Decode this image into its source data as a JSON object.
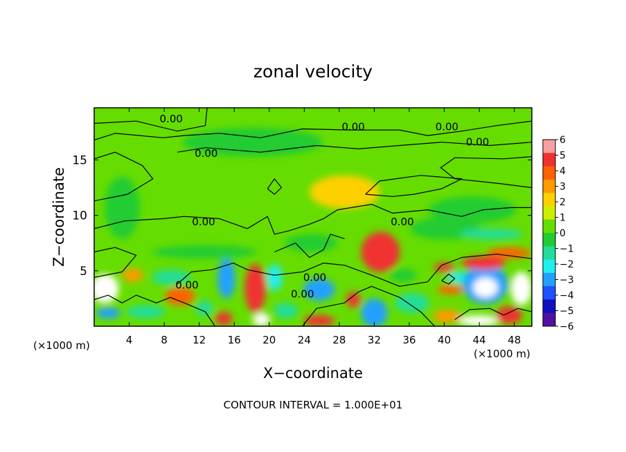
{
  "chart_data": {
    "type": "heatmap",
    "title": "zonal velocity",
    "xlabel": "X−coordinate",
    "ylabel": "Z−coordinate",
    "x_unit_left": "(×1000 m)",
    "x_unit_right": "(×1000 m)",
    "footer": "CONTOUR INTERVAL = 1.000E+01",
    "xlim": [
      0,
      50
    ],
    "ylim": [
      0,
      19.7
    ],
    "x_ticks": [
      4,
      8,
      12,
      16,
      20,
      24,
      28,
      32,
      36,
      40,
      44,
      48
    ],
    "y_ticks": [
      5,
      10,
      15
    ],
    "colorbar": {
      "ticks": [
        6,
        5,
        4,
        3,
        2,
        1,
        0,
        -1,
        -2,
        -3,
        -4,
        -5,
        -6
      ],
      "labels": [
        "6",
        "5",
        "4",
        "3",
        "2",
        "1",
        "0",
        "−1",
        "−2",
        "−3",
        "−4",
        "−5",
        "−6"
      ],
      "colors": [
        "#f8a0a0",
        "#f03030",
        "#ff6000",
        "#ff9900",
        "#ffd000",
        "#ccee00",
        "#66dd00",
        "#22cc33",
        "#22dd99",
        "#22eeee",
        "#22a0ff",
        "#2050ff",
        "#1010c0",
        "#5010a0"
      ]
    },
    "background_color": "#66dd00",
    "contour_label": "0.00",
    "contour_labels": [
      {
        "x": 8.8,
        "y": 18.7
      },
      {
        "x": 29.6,
        "y": 18.0
      },
      {
        "x": 40.3,
        "y": 18.0
      },
      {
        "x": 43.8,
        "y": 16.6
      },
      {
        "x": 12.8,
        "y": 15.6
      },
      {
        "x": 35.2,
        "y": 9.4
      },
      {
        "x": 12.5,
        "y": 9.4
      },
      {
        "x": 10.6,
        "y": 3.7
      },
      {
        "x": 23.8,
        "y": 2.9
      },
      {
        "x": 25.2,
        "y": 4.4
      }
    ],
    "blobs": [
      {
        "x": 32.7,
        "y": 6.7,
        "rx": 2.2,
        "ry": 1.8,
        "v": 4.5
      },
      {
        "x": 32.7,
        "y": 6.9,
        "rx": 1.2,
        "ry": 1.0,
        "v": 5
      },
      {
        "x": 1.2,
        "y": 3.4,
        "rx": 1.6,
        "ry": 1.3,
        "v": 6.5
      },
      {
        "x": 1.6,
        "y": 1.2,
        "rx": 1.4,
        "ry": 0.5,
        "v": -4.5
      },
      {
        "x": 4.4,
        "y": 4.6,
        "rx": 1.2,
        "ry": 0.6,
        "v": 2.5
      },
      {
        "x": 9.8,
        "y": 2.7,
        "rx": 1.7,
        "ry": 0.8,
        "v": 3.5
      },
      {
        "x": 12.6,
        "y": 1.6,
        "rx": 1.0,
        "ry": 0.7,
        "v": -2.5
      },
      {
        "x": 15.1,
        "y": 4.3,
        "rx": 1.0,
        "ry": 1.8,
        "v": -4
      },
      {
        "x": 18.4,
        "y": 3.4,
        "rx": 1.2,
        "ry": 2.2,
        "v": 4.5
      },
      {
        "x": 20.6,
        "y": 4.4,
        "rx": 0.9,
        "ry": 1.2,
        "v": -3
      },
      {
        "x": 14.8,
        "y": 0.7,
        "rx": 1.0,
        "ry": 0.6,
        "v": 5
      },
      {
        "x": 19.1,
        "y": 0.6,
        "rx": 1.0,
        "ry": 0.6,
        "v": 6.5
      },
      {
        "x": 25.7,
        "y": 3.3,
        "rx": 1.8,
        "ry": 1.0,
        "v": -4.5
      },
      {
        "x": 25.7,
        "y": 0.5,
        "rx": 1.8,
        "ry": 0.5,
        "v": 5
      },
      {
        "x": 29.6,
        "y": 2.4,
        "rx": 0.8,
        "ry": 0.7,
        "v": 4.5
      },
      {
        "x": 32.0,
        "y": 1.2,
        "rx": 1.5,
        "ry": 1.3,
        "v": -4
      },
      {
        "x": 36.3,
        "y": 2.1,
        "rx": 2.0,
        "ry": 0.9,
        "v": -2.5
      },
      {
        "x": 40.0,
        "y": 5.3,
        "rx": 1.2,
        "ry": 0.4,
        "v": 4.5
      },
      {
        "x": 40.7,
        "y": 3.3,
        "rx": 1.5,
        "ry": 0.4,
        "v": 3.5
      },
      {
        "x": 41.7,
        "y": 4.4,
        "rx": 1.5,
        "ry": 0.5,
        "v": -3
      },
      {
        "x": 44.7,
        "y": 3.8,
        "rx": 2.6,
        "ry": 1.8,
        "v": -4.5
      },
      {
        "x": 44.7,
        "y": 3.5,
        "rx": 1.4,
        "ry": 0.9,
        "v": 6.5
      },
      {
        "x": 44.5,
        "y": 5.7,
        "rx": 2.5,
        "ry": 0.6,
        "v": 4.5
      },
      {
        "x": 47.4,
        "y": 6.6,
        "rx": 2.5,
        "ry": 0.5,
        "v": 3.5
      },
      {
        "x": 48.8,
        "y": 3.4,
        "rx": 1.2,
        "ry": 1.5,
        "v": 6.5
      },
      {
        "x": 47.4,
        "y": 1.0,
        "rx": 1.5,
        "ry": 0.8,
        "v": 4.5
      },
      {
        "x": 43.9,
        "y": 0.5,
        "rx": 2.3,
        "ry": 0.5,
        "v": 6.5
      },
      {
        "x": 40.3,
        "y": 0.9,
        "rx": 1.6,
        "ry": 0.6,
        "v": 2.5
      },
      {
        "x": 8.8,
        "y": 4.4,
        "rx": 2.2,
        "ry": 0.7,
        "v": -2
      },
      {
        "x": 12.6,
        "y": 6.7,
        "rx": 6.0,
        "ry": 0.6,
        "v": -1.5
      },
      {
        "x": 3.2,
        "y": 10.7,
        "rx": 2.0,
        "ry": 2.8,
        "v": -1.2
      },
      {
        "x": 43.2,
        "y": 10.5,
        "rx": 5.0,
        "ry": 1.2,
        "v": -1.8
      },
      {
        "x": 40.1,
        "y": 8.8,
        "rx": 4.0,
        "ry": 1.0,
        "v": -1.5
      },
      {
        "x": 18.1,
        "y": 16.6,
        "rx": 8.0,
        "ry": 1.3,
        "v": -1.0
      },
      {
        "x": 28.6,
        "y": 12.1,
        "rx": 4.0,
        "ry": 1.5,
        "v": 1.3
      },
      {
        "x": 24.8,
        "y": 7.5,
        "rx": 3.0,
        "ry": 0.8,
        "v": -1.2
      },
      {
        "x": 5.9,
        "y": 1.3,
        "rx": 2.2,
        "ry": 0.6,
        "v": -2
      },
      {
        "x": 21.9,
        "y": 1.4,
        "rx": 1.4,
        "ry": 0.7,
        "v": -2.2
      },
      {
        "x": 35.3,
        "y": 4.6,
        "rx": 1.6,
        "ry": 0.6,
        "v": -1.5
      },
      {
        "x": 45.4,
        "y": 8.3,
        "rx": 3.6,
        "ry": 0.5,
        "v": -2.0
      }
    ],
    "contours": [
      [
        [
          0,
          18.3
        ],
        [
          4.8,
          18.5
        ],
        [
          9.5,
          17.6
        ],
        [
          12.7,
          18.1
        ],
        [
          12.9,
          19.7
        ]
      ],
      [
        [
          0,
          16.8
        ],
        [
          2.4,
          17.4
        ],
        [
          7.9,
          17.0
        ],
        [
          10.3,
          17.2
        ],
        [
          14.3,
          17.4
        ],
        [
          19.0,
          17.0
        ],
        [
          23.8,
          17.8
        ],
        [
          29.3,
          17.7
        ],
        [
          34.9,
          17.7
        ],
        [
          38.1,
          17.2
        ],
        [
          42.0,
          17.6
        ],
        [
          46.0,
          18.1
        ],
        [
          50,
          18.5
        ]
      ],
      [
        [
          0,
          15.1
        ],
        [
          2.4,
          15.7
        ],
        [
          5.5,
          14.5
        ],
        [
          6.7,
          13.3
        ],
        [
          3.8,
          11.9
        ],
        [
          0,
          11.3
        ]
      ],
      [
        [
          9.5,
          15.7
        ],
        [
          12.7,
          16.1
        ],
        [
          19.0,
          15.7
        ],
        [
          25.4,
          16.3
        ],
        [
          30.2,
          16.0
        ],
        [
          34.9,
          16.3
        ],
        [
          39.7,
          16.6
        ],
        [
          45.2,
          16.3
        ],
        [
          50,
          16.6
        ]
      ],
      [
        [
          50,
          15.3
        ],
        [
          46.8,
          15.1
        ],
        [
          41.2,
          15.2
        ],
        [
          39.6,
          14.3
        ],
        [
          41.2,
          13.3
        ],
        [
          46.0,
          12.9
        ],
        [
          50,
          12.5
        ]
      ],
      [
        [
          31.0,
          11.9
        ],
        [
          34.1,
          11.7
        ],
        [
          36.5,
          11.9
        ],
        [
          39.7,
          12.4
        ],
        [
          42.0,
          13.3
        ],
        [
          37.3,
          13.6
        ],
        [
          32.6,
          13.1
        ],
        [
          31.0,
          11.9
        ]
      ],
      [
        [
          0,
          8.8
        ],
        [
          3.5,
          9.5
        ],
        [
          7.9,
          9.7
        ],
        [
          10.3,
          9.9
        ],
        [
          14.3,
          9.7
        ],
        [
          17.5,
          8.8
        ],
        [
          19.8,
          9.9
        ],
        [
          20.6,
          8.3
        ],
        [
          22.2,
          8.6
        ],
        [
          24.6,
          9.2
        ],
        [
          26.2,
          9.7
        ],
        [
          27.8,
          10.5
        ],
        [
          31.7,
          11.0
        ],
        [
          34.1,
          10.2
        ],
        [
          38.1,
          10.5
        ],
        [
          42.0,
          9.9
        ],
        [
          44.4,
          10.5
        ],
        [
          47.6,
          10.7
        ],
        [
          50,
          10.7
        ]
      ],
      [
        [
          0,
          4.4
        ],
        [
          3.2,
          4.9
        ],
        [
          4.8,
          6.4
        ],
        [
          2.4,
          7.1
        ],
        [
          0,
          6.7
        ]
      ],
      [
        [
          9.5,
          3.8
        ],
        [
          11.1,
          4.9
        ],
        [
          13.5,
          5.1
        ],
        [
          15.9,
          5.7
        ],
        [
          17.5,
          5.1
        ],
        [
          20.6,
          4.6
        ],
        [
          23.8,
          4.9
        ],
        [
          26.2,
          5.7
        ],
        [
          28.6,
          5.5
        ],
        [
          31.7,
          4.6
        ],
        [
          34.9,
          3.6
        ],
        [
          38.1,
          4.0
        ],
        [
          39.7,
          5.5
        ],
        [
          42.0,
          6.2
        ],
        [
          46.0,
          6.5
        ],
        [
          50,
          6.1
        ]
      ],
      [
        [
          20.6,
          6.7
        ],
        [
          23.0,
          7.5
        ],
        [
          24.6,
          6.2
        ],
        [
          26.2,
          6.9
        ],
        [
          27.0,
          8.3
        ],
        [
          28.6,
          7.9
        ]
      ],
      [
        [
          23.8,
          0
        ],
        [
          25.4,
          1.6
        ],
        [
          28.6,
          2.1
        ],
        [
          30.2,
          3.1
        ],
        [
          31.7,
          3.6
        ],
        [
          34.9,
          2.6
        ],
        [
          37.3,
          1.3
        ],
        [
          38.9,
          0
        ]
      ],
      [
        [
          41.2,
          0.6
        ],
        [
          42.9,
          1.5
        ],
        [
          45.2,
          1.6
        ],
        [
          46.8,
          1.0
        ],
        [
          48.4,
          1.6
        ],
        [
          50,
          1.3
        ]
      ],
      [
        [
          0,
          2.4
        ],
        [
          1.6,
          2.8
        ],
        [
          3.2,
          2.1
        ],
        [
          4.8,
          2.8
        ],
        [
          7.1,
          2.1
        ],
        [
          8.7,
          2.6
        ],
        [
          10.3,
          2.1
        ],
        [
          12.7,
          1.3
        ],
        [
          13.8,
          0
        ]
      ],
      [
        [
          19.8,
          12.4
        ],
        [
          20.6,
          11.9
        ],
        [
          21.4,
          12.5
        ],
        [
          20.6,
          13.3
        ],
        [
          19.8,
          12.4
        ]
      ],
      [
        [
          39.7,
          4.1
        ],
        [
          40.5,
          3.8
        ],
        [
          41.2,
          4.3
        ],
        [
          40.5,
          4.7
        ],
        [
          39.7,
          4.1
        ]
      ]
    ]
  }
}
